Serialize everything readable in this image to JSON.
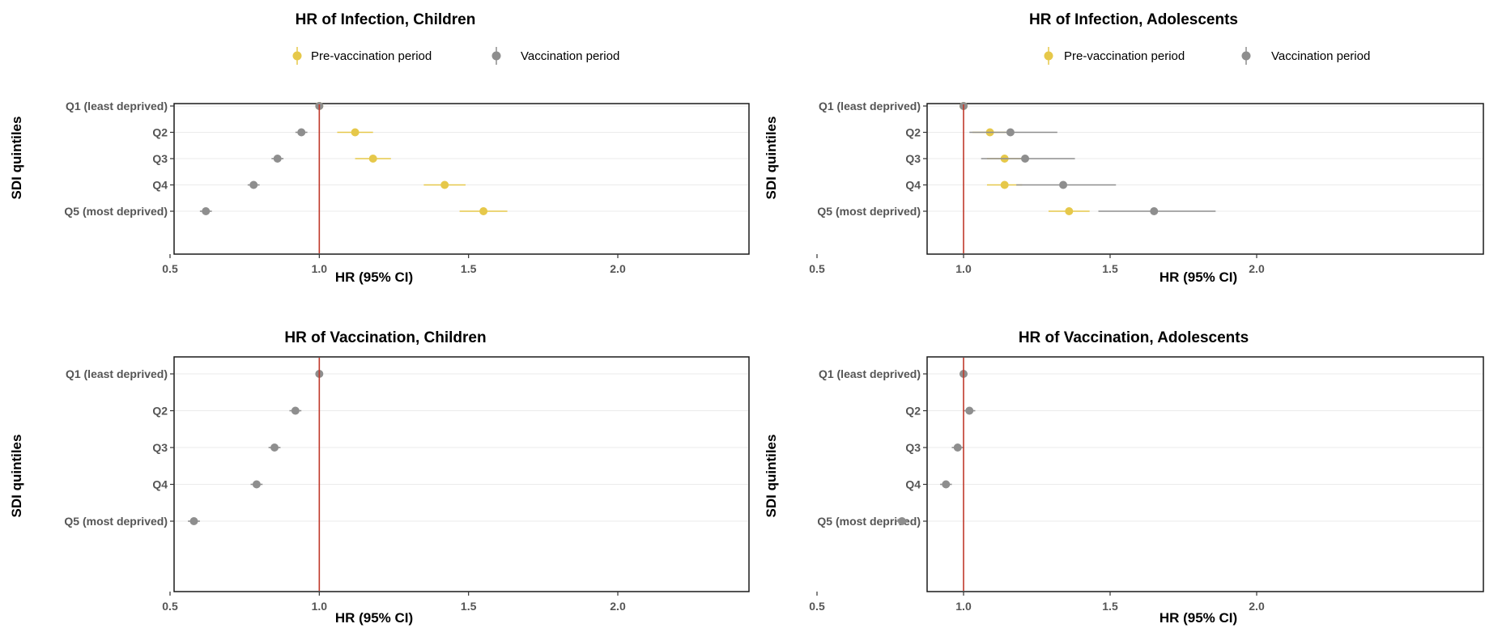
{
  "colors": {
    "pre_vaccination": "#E6C84A",
    "vaccination": "#8E8E8E",
    "reference_line": "#C0392B"
  },
  "legend": {
    "items": [
      {
        "label": "Pre-vaccination period",
        "color": "#E6C84A"
      },
      {
        "label": "Vaccination period",
        "color": "#8E8E8E"
      }
    ]
  },
  "chart_data": [
    {
      "type": "scatter",
      "subtype": "forest-plot",
      "title": "HR of Infection, Children",
      "xlabel": "HR (95% CI)",
      "ylabel": "SDI quintiles",
      "xlim": [
        0.4,
        2.1
      ],
      "xticks": [
        "0.5",
        "1.0",
        "1.5",
        "2.0"
      ],
      "reference_x": 1.0,
      "categories": [
        "Q1 (least deprived)",
        "Q2",
        "Q3",
        "Q4",
        "Q5 (most deprived)"
      ],
      "legend_position": "top",
      "series": [
        {
          "name": "Pre-vaccination period",
          "values": [
            1.0,
            1.12,
            1.18,
            1.42,
            1.55
          ],
          "lower": [
            1.0,
            1.06,
            1.12,
            1.35,
            1.47
          ],
          "upper": [
            1.0,
            1.18,
            1.24,
            1.49,
            1.63
          ]
        },
        {
          "name": "Vaccination period",
          "values": [
            1.0,
            0.94,
            0.86,
            0.78,
            0.62
          ],
          "lower": [
            1.0,
            0.92,
            0.84,
            0.76,
            0.6
          ],
          "upper": [
            1.0,
            0.96,
            0.88,
            0.8,
            0.64
          ]
        }
      ]
    },
    {
      "type": "scatter",
      "subtype": "forest-plot",
      "title": "HR of Infection, Adolescents",
      "xlabel": "HR (95% CI)",
      "ylabel": "SDI quintiles",
      "xlim": [
        0.4,
        2.1
      ],
      "xticks": [
        "0.5",
        "1.0",
        "1.5",
        "2.0"
      ],
      "reference_x": 1.0,
      "categories": [
        "Q1 (least deprived)",
        "Q2",
        "Q3",
        "Q4",
        "Q5 (most deprived)"
      ],
      "legend_position": "top",
      "series": [
        {
          "name": "Pre-vaccination period",
          "values": [
            1.0,
            1.09,
            1.14,
            1.14,
            1.36
          ],
          "lower": [
            1.0,
            1.03,
            1.08,
            1.08,
            1.29
          ],
          "upper": [
            1.0,
            1.15,
            1.2,
            1.2,
            1.43
          ]
        },
        {
          "name": "Vaccination period",
          "values": [
            1.0,
            1.16,
            1.21,
            1.34,
            1.65
          ],
          "lower": [
            1.0,
            1.02,
            1.06,
            1.18,
            1.46
          ],
          "upper": [
            1.0,
            1.32,
            1.38,
            1.52,
            1.86
          ]
        }
      ]
    },
    {
      "type": "scatter",
      "subtype": "forest-plot",
      "title": "HR of Vaccination, Children",
      "xlabel": "HR (95% CI)",
      "ylabel": "SDI quintiles",
      "xlim": [
        0.4,
        2.1
      ],
      "xticks": [
        "0.5",
        "1.0",
        "1.5",
        "2.0"
      ],
      "reference_x": 1.0,
      "categories": [
        "Q1 (least deprived)",
        "Q2",
        "Q3",
        "Q4",
        "Q5 (most deprived)"
      ],
      "series": [
        {
          "name": "Vaccination period",
          "values": [
            1.0,
            0.92,
            0.85,
            0.79,
            0.58
          ],
          "lower": [
            1.0,
            0.9,
            0.83,
            0.77,
            0.56
          ],
          "upper": [
            1.0,
            0.94,
            0.87,
            0.81,
            0.6
          ]
        }
      ]
    },
    {
      "type": "scatter",
      "subtype": "forest-plot",
      "title": "HR of Vaccination, Adolescents",
      "xlabel": "HR (95% CI)",
      "ylabel": "SDI quintiles",
      "xlim": [
        0.4,
        2.1
      ],
      "xticks": [
        "0.5",
        "1.0",
        "1.5",
        "2.0"
      ],
      "reference_x": 1.0,
      "categories": [
        "Q1 (least deprived)",
        "Q2",
        "Q3",
        "Q4",
        "Q5 (most deprived)"
      ],
      "series": [
        {
          "name": "Vaccination period",
          "values": [
            1.0,
            1.02,
            0.98,
            0.94,
            0.79
          ],
          "lower": [
            1.0,
            1.0,
            0.96,
            0.92,
            0.77
          ],
          "upper": [
            1.0,
            1.04,
            1.0,
            0.96,
            0.81
          ]
        }
      ]
    }
  ]
}
